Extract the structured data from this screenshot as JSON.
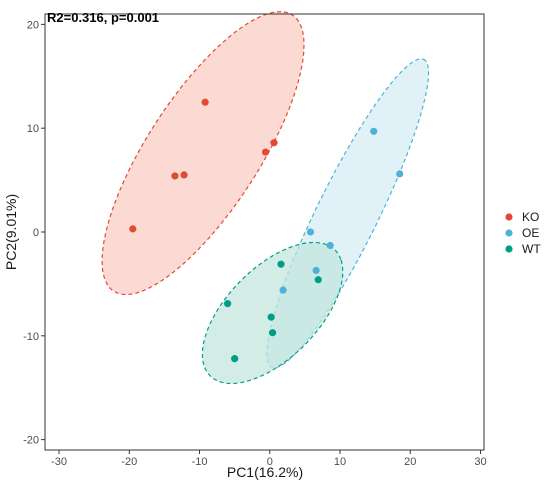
{
  "chart_data": {
    "type": "scatter",
    "annotation": "R2=0.316, p=0.001",
    "xlabel": "PC1(16.2%)",
    "ylabel": "PC2(9.01%)",
    "xlim": [
      -32,
      30.5
    ],
    "ylim": [
      -21,
      21
    ],
    "xticks": [
      -30,
      -20,
      -10,
      0,
      10,
      20,
      30
    ],
    "yticks": [
      -20,
      -10,
      0,
      10,
      20
    ],
    "grid": false,
    "legend_position": "right",
    "series": [
      {
        "name": "KO",
        "color": "#e24b33",
        "fill": "#f8cdc4",
        "points": [
          [
            -9.2,
            12.5
          ],
          [
            -13.5,
            5.4
          ],
          [
            -12.2,
            5.5
          ],
          [
            -0.6,
            7.7
          ],
          [
            0.6,
            8.6
          ],
          [
            -19.5,
            0.3
          ]
        ],
        "ellipse": {
          "cx": -9.5,
          "cy": 7.6,
          "rx": 18.6,
          "ry": 6.8,
          "angle_deg": 43
        }
      },
      {
        "name": "OE",
        "color": "#4db3d4",
        "fill": "#d6eef5",
        "points": [
          [
            14.8,
            9.7
          ],
          [
            18.5,
            5.6
          ],
          [
            5.8,
            0.0
          ],
          [
            8.6,
            -1.3
          ],
          [
            6.6,
            -3.7
          ],
          [
            1.9,
            -5.6
          ]
        ],
        "ellipse": {
          "cx": 11.1,
          "cy": 1.8,
          "rx": 18.4,
          "ry": 3.9,
          "angle_deg": 53
        }
      },
      {
        "name": "WT",
        "color": "#009e86",
        "fill": "#c4e6de",
        "points": [
          [
            1.6,
            -3.1
          ],
          [
            6.9,
            -4.6
          ],
          [
            -6.0,
            -6.9
          ],
          [
            0.2,
            -8.2
          ],
          [
            0.4,
            -9.7
          ],
          [
            -5.0,
            -12.2
          ]
        ],
        "ellipse": {
          "cx": 0.4,
          "cy": -7.8,
          "rx": 11.0,
          "ry": 5.0,
          "angle_deg": 28
        }
      }
    ]
  }
}
